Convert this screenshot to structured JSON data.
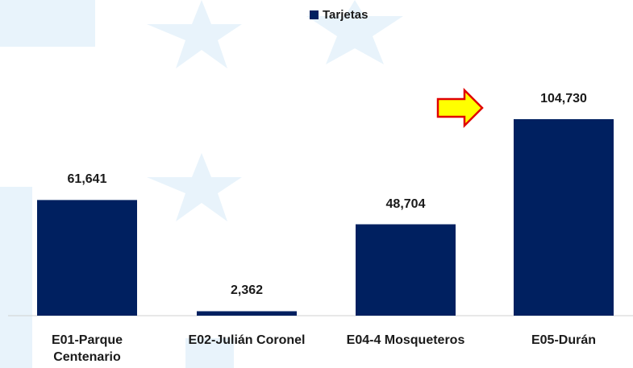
{
  "chart_data": {
    "type": "bar",
    "categories": [
      "E01-Parque Centenario",
      "E02-Julián Coronel",
      "E04-4 Mosqueteros",
      "E05-Durán"
    ],
    "series": [
      {
        "name": "Tarjetas",
        "color": "#002060",
        "values": [
          61641,
          2362,
          48704,
          104730
        ],
        "value_labels": [
          "61,641",
          "2,362",
          "48,704",
          "104,730"
        ]
      }
    ]
  }
}
